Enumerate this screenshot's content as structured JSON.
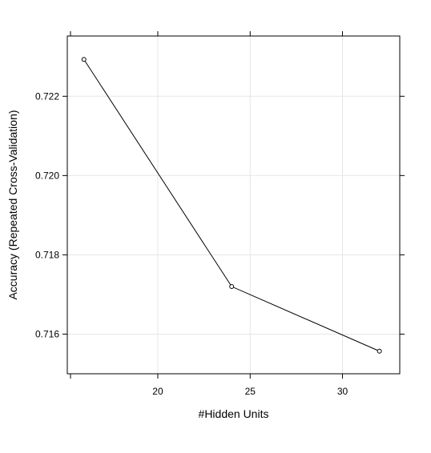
{
  "chart_data": {
    "type": "line",
    "title": "",
    "xlabel": "#Hidden Units",
    "ylabel": "Accuracy (Repeated Cross-Validation)",
    "x": [
      16,
      24,
      32
    ],
    "series": [
      {
        "values": [
          0.72293,
          0.7172,
          0.71557
        ]
      }
    ],
    "xlim": [
      15.1,
      33.1
    ],
    "ylim": [
      0.715,
      0.72352
    ],
    "xticks": [
      20,
      25,
      30
    ],
    "xtick_labels": [
      "20",
      "25",
      "30"
    ],
    "yticks": [
      0.716,
      0.718,
      0.72,
      0.722
    ],
    "ytick_labels": [
      "0.716",
      "0.718",
      "0.720",
      "0.722"
    ],
    "grid": true,
    "legend": "none",
    "colors": {
      "line": "#000000",
      "point_stroke": "#000000",
      "grid": "#e6e6e6",
      "frame": "#000000",
      "background": "#ffffff"
    },
    "marker": "open-circle"
  }
}
